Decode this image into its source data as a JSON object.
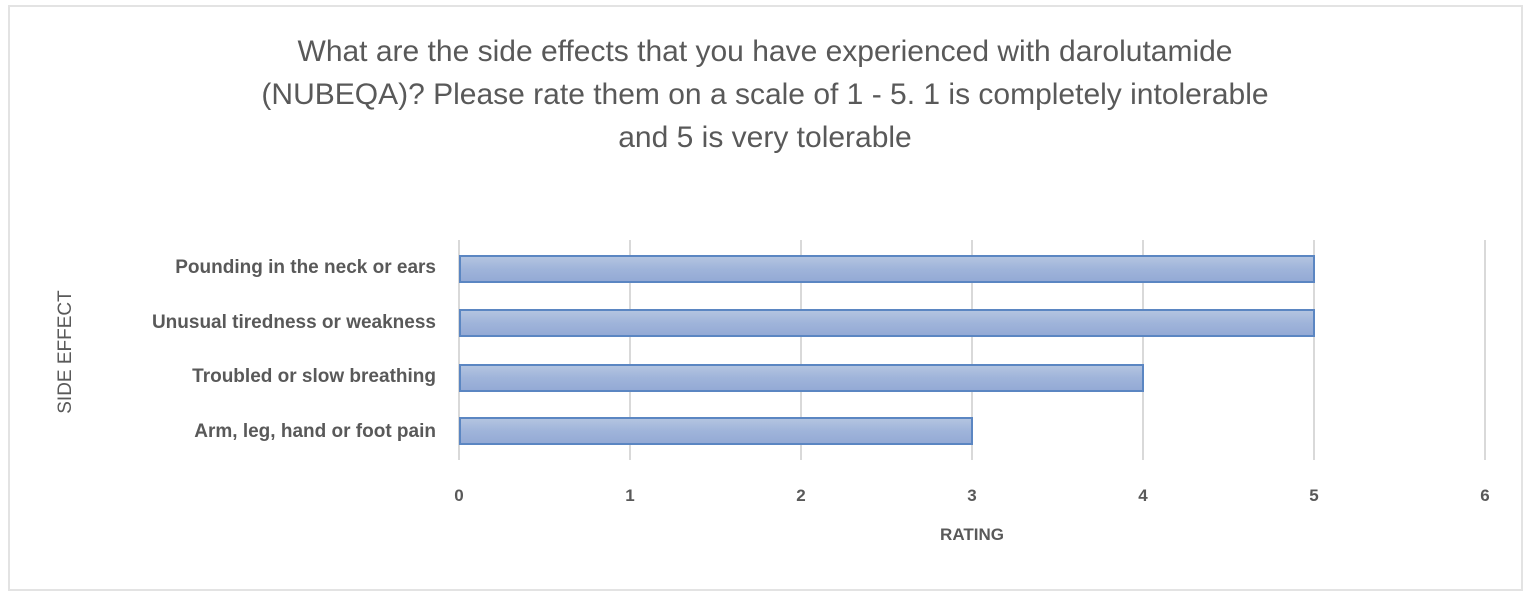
{
  "chart_data": {
    "type": "bar",
    "orientation": "horizontal",
    "title": "What are the side effects that you have experienced with darolutamide (NUBEQA)? Please rate them on a scale of 1 - 5. 1 is completely intolerable and 5 is very tolerable",
    "title_lines": [
      "What are the side effects that you have experienced with darolutamide",
      "(NUBEQA)? Please rate them on a scale of 1 - 5. 1 is completely intolerable",
      "and 5 is very tolerable"
    ],
    "categories": [
      "Pounding in the neck or ears",
      "Unusual tiredness or weakness",
      "Troubled or slow breathing",
      "Arm, leg, hand or foot pain"
    ],
    "values": [
      5,
      5,
      4,
      3
    ],
    "xlabel": "RATING",
    "ylabel": "SIDE EFFECT",
    "xlim": [
      0,
      6
    ],
    "xticks": [
      "0",
      "1",
      "2",
      "3",
      "4",
      "5",
      "6"
    ],
    "grid": "vertical",
    "legend": "none",
    "bar_color": "#9fb4da",
    "bar_border_color": "#5b86c2"
  }
}
